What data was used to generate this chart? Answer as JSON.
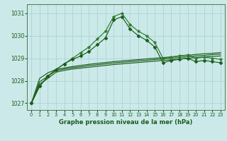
{
  "title": "Graphe pression niveau de la mer (hPa)",
  "background_color": "#cce9e9",
  "grid_color": "#aad4d4",
  "line_color_dark": "#1a5c1a",
  "line_color_med": "#2d7a2d",
  "xlim": [
    -0.5,
    23.5
  ],
  "ylim": [
    1026.7,
    1031.4
  ],
  "yticks": [
    1027,
    1028,
    1029,
    1030,
    1031
  ],
  "xticks": [
    0,
    1,
    2,
    3,
    4,
    5,
    6,
    7,
    8,
    9,
    10,
    11,
    12,
    13,
    14,
    15,
    16,
    17,
    18,
    19,
    20,
    21,
    22,
    23
  ],
  "x": [
    0,
    1,
    2,
    3,
    4,
    5,
    6,
    7,
    8,
    9,
    10,
    11,
    12,
    13,
    14,
    15,
    16,
    17,
    18,
    19,
    20,
    21,
    22,
    23
  ],
  "peaked1": [
    1027.0,
    1027.75,
    1028.2,
    1028.5,
    1028.75,
    1029.0,
    1029.25,
    1029.5,
    1029.85,
    1030.2,
    1030.85,
    1031.0,
    1030.5,
    1030.2,
    1030.0,
    1029.7,
    1029.0,
    1029.05,
    1029.1,
    1029.15,
    1029.0,
    1029.05,
    1029.0,
    1028.95
  ],
  "peaked2": [
    1027.0,
    1027.75,
    1028.2,
    1028.5,
    1028.75,
    1028.95,
    1029.1,
    1029.3,
    1029.6,
    1029.9,
    1030.7,
    1030.85,
    1030.3,
    1030.0,
    1029.8,
    1029.5,
    1028.8,
    1028.9,
    1028.95,
    1029.0,
    1028.85,
    1028.9,
    1028.85,
    1028.8
  ],
  "flat1": [
    1027.0,
    1028.1,
    1028.35,
    1028.5,
    1028.57,
    1028.63,
    1028.68,
    1028.73,
    1028.77,
    1028.81,
    1028.85,
    1028.88,
    1028.91,
    1028.94,
    1028.97,
    1029.0,
    1029.03,
    1029.06,
    1029.1,
    1029.13,
    1029.17,
    1029.2,
    1029.22,
    1029.25
  ],
  "flat2": [
    1027.0,
    1027.95,
    1028.2,
    1028.45,
    1028.52,
    1028.58,
    1028.62,
    1028.67,
    1028.71,
    1028.75,
    1028.79,
    1028.82,
    1028.85,
    1028.88,
    1028.91,
    1028.94,
    1028.97,
    1029.0,
    1029.03,
    1029.07,
    1029.1,
    1029.13,
    1029.16,
    1029.18
  ],
  "flat3": [
    1027.0,
    1027.85,
    1028.1,
    1028.38,
    1028.46,
    1028.52,
    1028.56,
    1028.6,
    1028.64,
    1028.68,
    1028.72,
    1028.75,
    1028.78,
    1028.81,
    1028.84,
    1028.87,
    1028.9,
    1028.93,
    1028.96,
    1029.0,
    1029.03,
    1029.06,
    1029.08,
    1029.1
  ]
}
